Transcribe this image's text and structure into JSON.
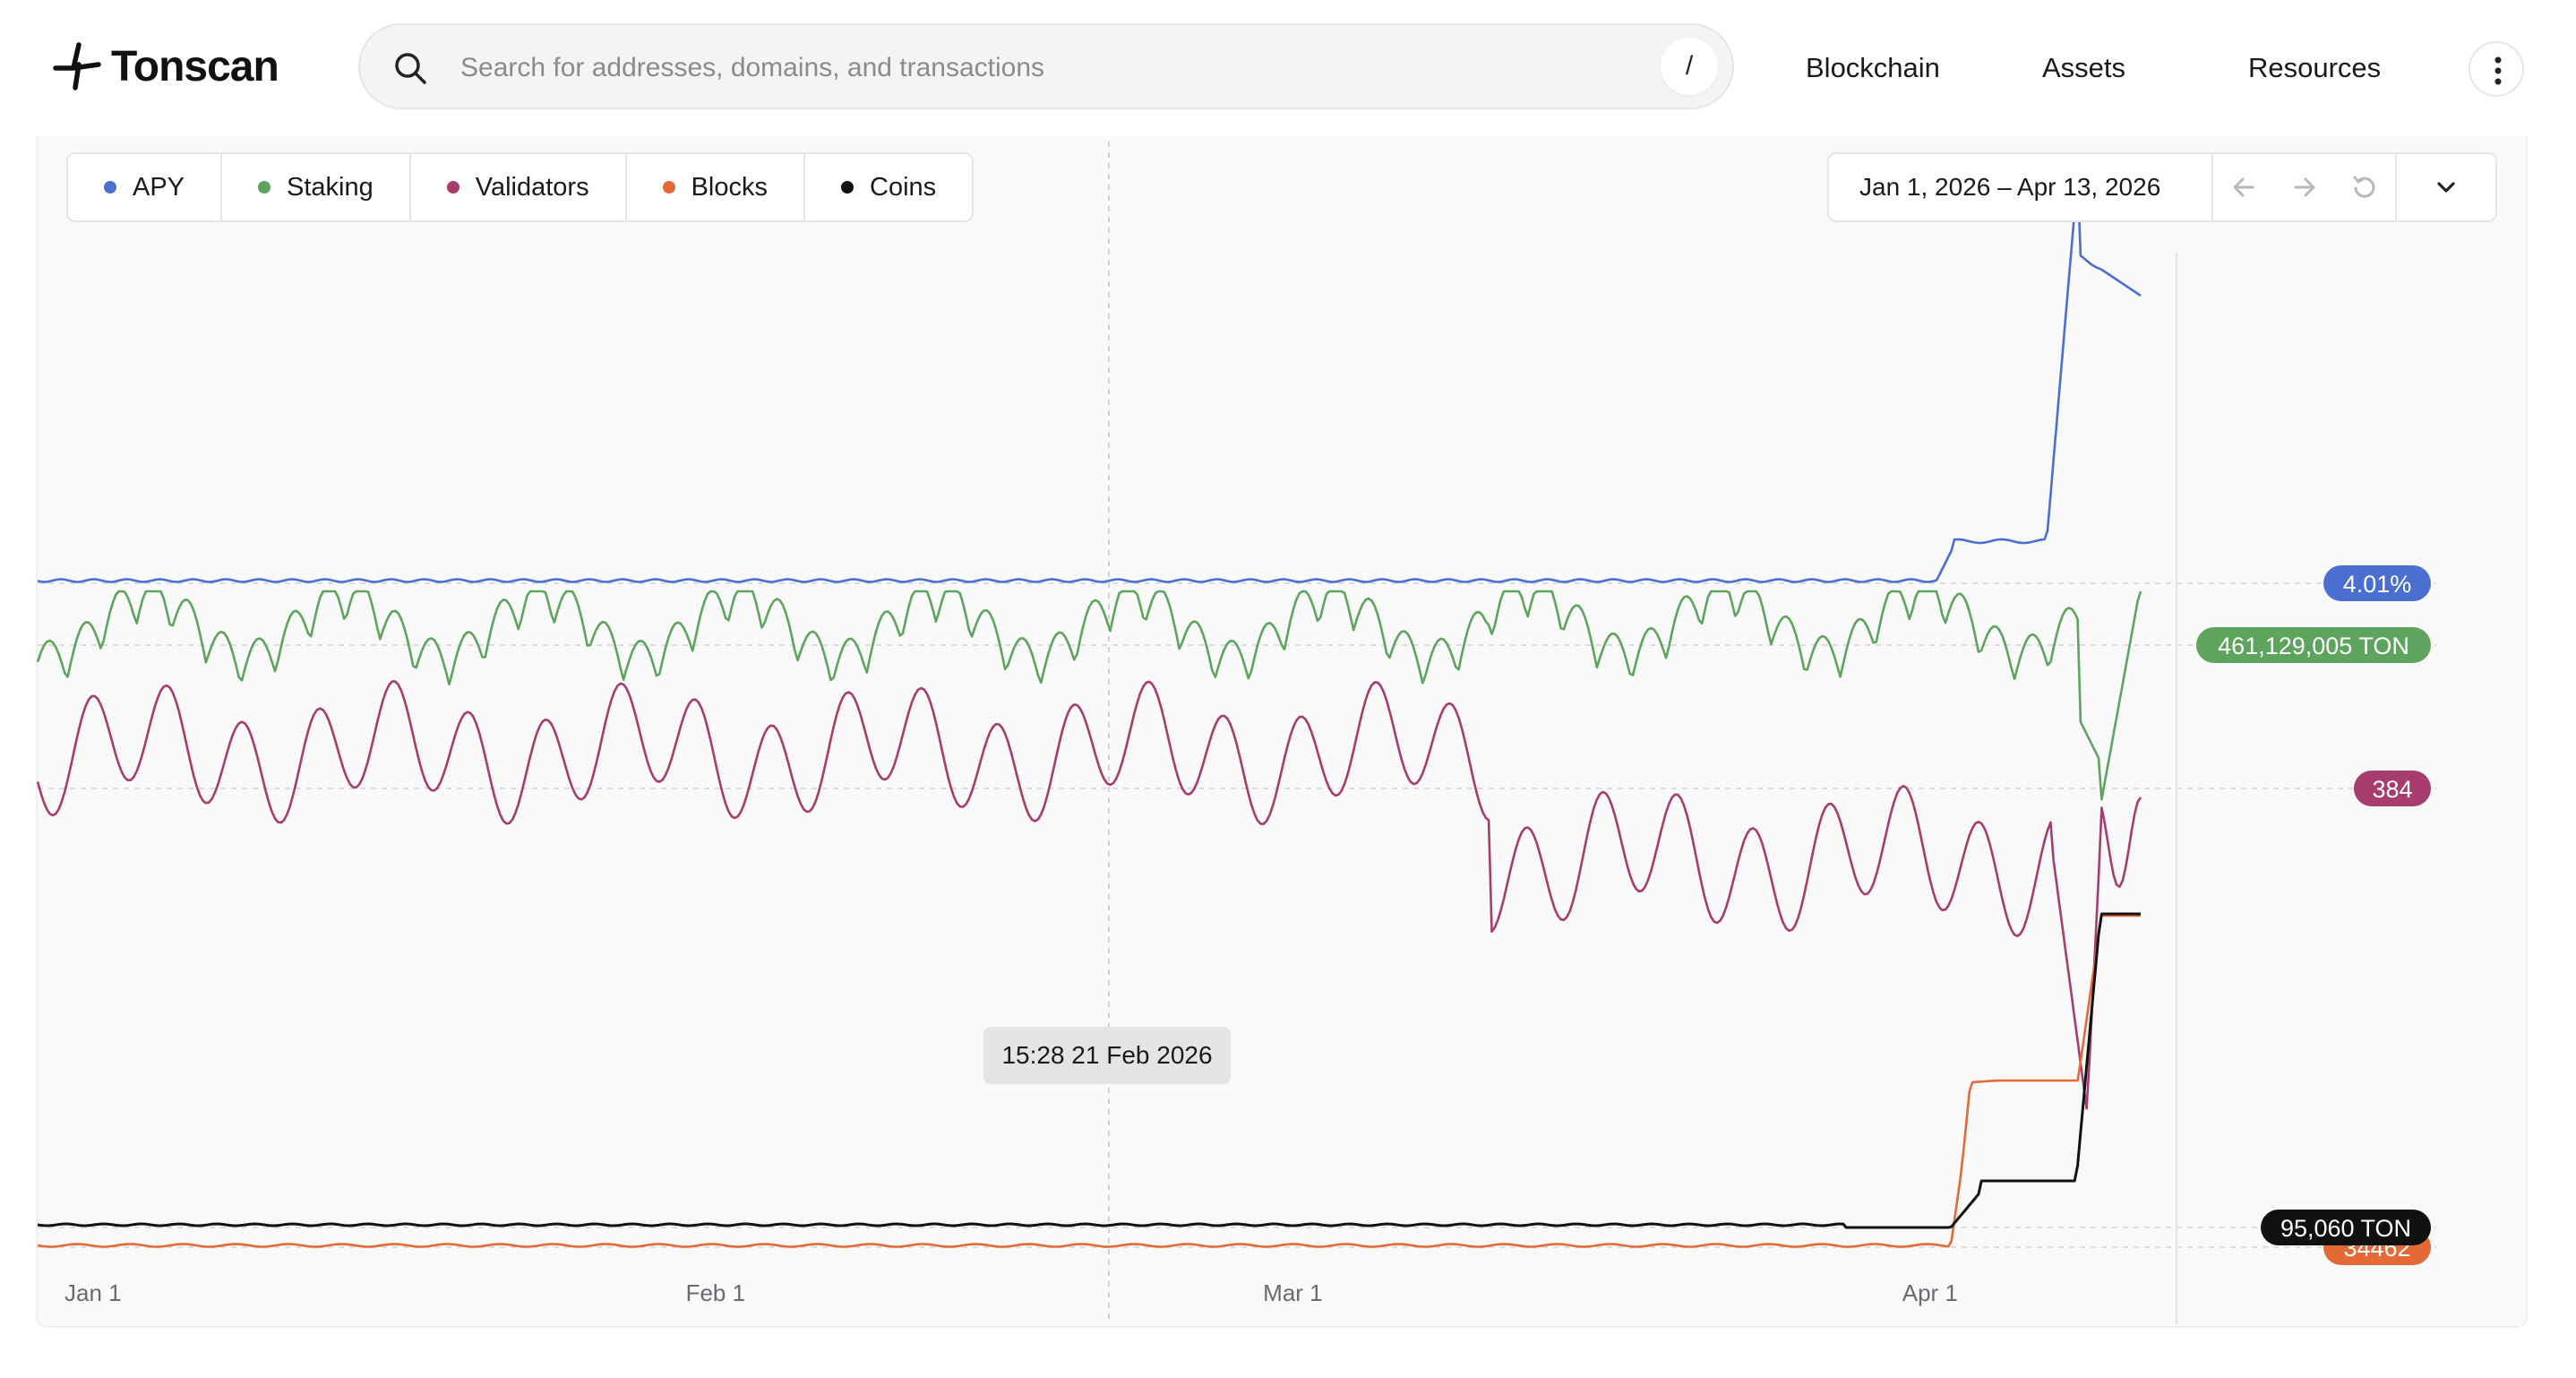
{
  "header": {
    "logo_text": "Tonscan",
    "search_placeholder": "Search for addresses, domains, and transactions",
    "search_shortcut": "/",
    "nav": [
      "Blockchain",
      "Assets",
      "Resources"
    ]
  },
  "legend": [
    {
      "label": "APY",
      "color": "#4a6fd1"
    },
    {
      "label": "Staking",
      "color": "#5ea45e"
    },
    {
      "label": "Validators",
      "color": "#a63d6e"
    },
    {
      "label": "Blocks",
      "color": "#e36a36"
    },
    {
      "label": "Coins",
      "color": "#111111"
    }
  ],
  "date_range": "Jan 1, 2026 – Apr 13, 2026",
  "tooltip": "15:28 21 Feb 2026",
  "chart_data": {
    "type": "line",
    "x_ticks": [
      "Jan 1",
      "Feb 1",
      "Mar 1",
      "Apr 1"
    ],
    "x_range": [
      "2026-01-01",
      "2026-04-13"
    ],
    "crosshair_date": "2026-02-21",
    "series": [
      {
        "name": "APY",
        "color": "#4a6fd1",
        "current_label": "4.01%"
      },
      {
        "name": "Staking",
        "color": "#5ea45e",
        "current_label": "461,129,005 TON"
      },
      {
        "name": "Validators",
        "color": "#a63d6e",
        "current_label": "384"
      },
      {
        "name": "Blocks",
        "color": "#e36a36",
        "current_label": "34462"
      },
      {
        "name": "Coins",
        "color": "#111111",
        "current_label": "95,060 TON"
      }
    ]
  }
}
